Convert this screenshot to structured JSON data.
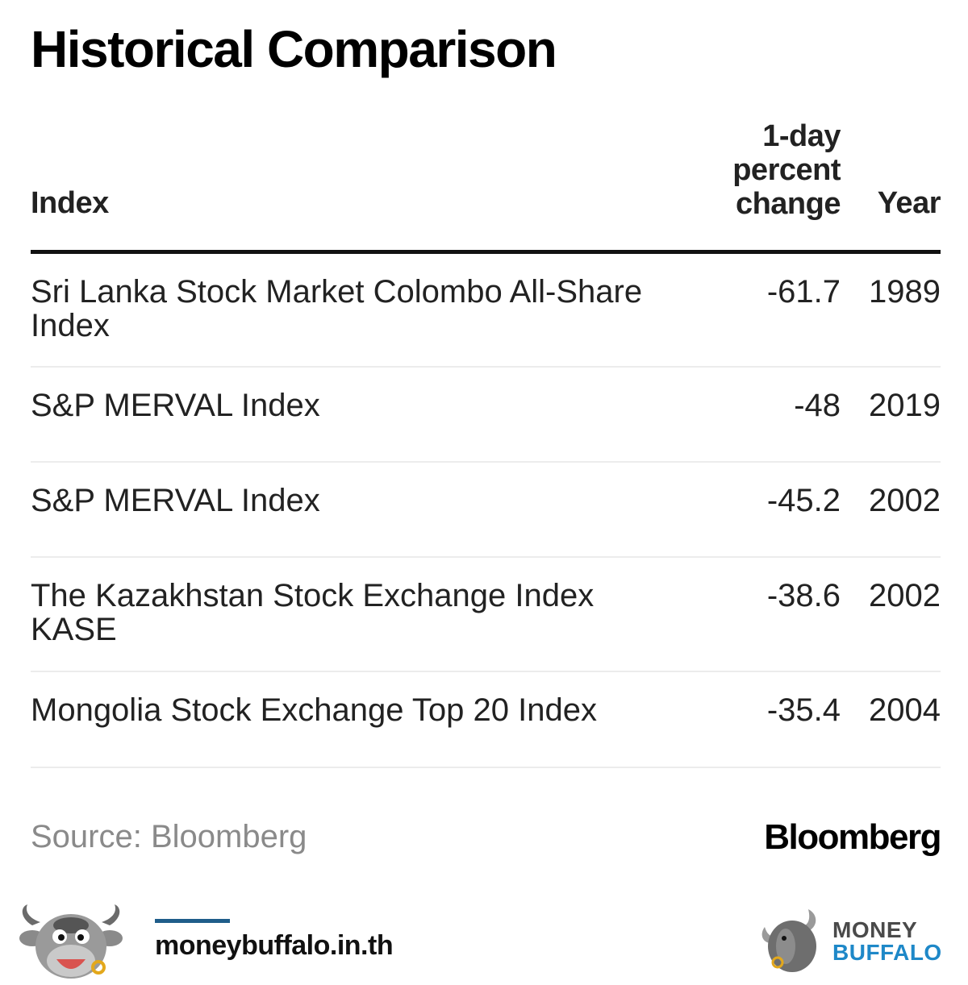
{
  "chart_data": {
    "type": "table",
    "title": "Historical Comparison",
    "columns": [
      "Index",
      "1-day percent change",
      "Year"
    ],
    "rows": [
      {
        "index": "Sri Lanka Stock Market Colombo All-Share Index",
        "change": "-61.7",
        "year": "1989"
      },
      {
        "index": "S&P MERVAL Index",
        "change": "-48",
        "year": "2019"
      },
      {
        "index": "S&P MERVAL Index",
        "change": "-45.2",
        "year": "2002"
      },
      {
        "index": "The Kazakhstan Stock Exchange Index KASE",
        "change": "-38.6",
        "year": "2002"
      },
      {
        "index": "Mongolia Stock Exchange Top 20 Index",
        "change": "-35.4",
        "year": "2004"
      }
    ],
    "source": "Source: Bloomberg",
    "brand": "Bloomberg"
  },
  "header": {
    "index": "Index",
    "change_lines": [
      "1-day",
      "percent",
      "change"
    ],
    "year": "Year"
  },
  "footer": {
    "url": "moneybuffalo.in.th",
    "logo_line1": "MONEY",
    "logo_line2": "BUFFALO",
    "accent_color": "#1e88c8",
    "mascot_icon": "buffalo-mascot-icon"
  }
}
